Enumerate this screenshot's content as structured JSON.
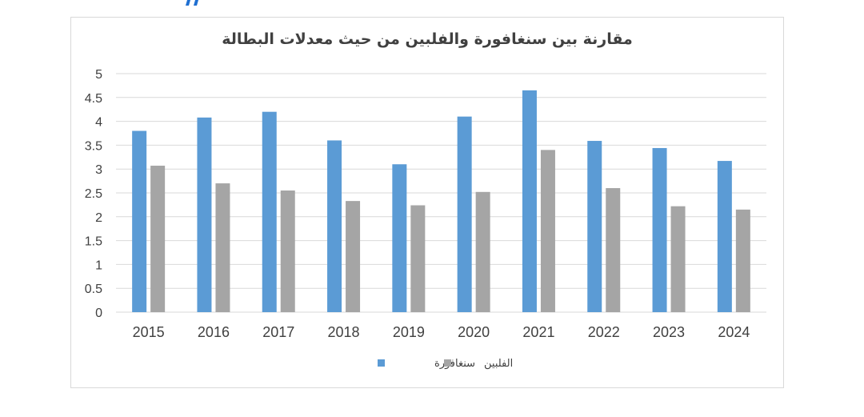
{
  "colors": {
    "series_1": "#5b9bd5",
    "series_2": "#a5a5a5",
    "grid": "#d9d9d9",
    "text": "#404040",
    "top_mark": "#1f6fd1"
  },
  "chart_data": {
    "type": "bar",
    "title": "مقارنة بين سنغافورة والفلبين من حيث معدلات البطالة",
    "xlabel": "",
    "ylabel": "",
    "categories": [
      "2015",
      "2016",
      "2017",
      "2018",
      "2019",
      "2020",
      "2021",
      "2022",
      "2023",
      "2024"
    ],
    "series": [
      {
        "name": "سنغافورة",
        "values": [
          3.8,
          4.08,
          4.2,
          3.6,
          3.1,
          4.1,
          4.65,
          3.59,
          3.44,
          3.17
        ]
      },
      {
        "name": "الفلبين",
        "values": [
          3.07,
          2.7,
          2.55,
          2.33,
          2.24,
          2.52,
          3.4,
          2.6,
          2.22,
          2.15
        ]
      }
    ],
    "ylim": [
      0,
      5
    ],
    "yticks": [
      "0",
      "0.5",
      "1",
      "1.5",
      "2",
      "2.5",
      "3",
      "3.5",
      "4",
      "4.5",
      "5"
    ],
    "grid": true,
    "legend_position": "bottom"
  }
}
